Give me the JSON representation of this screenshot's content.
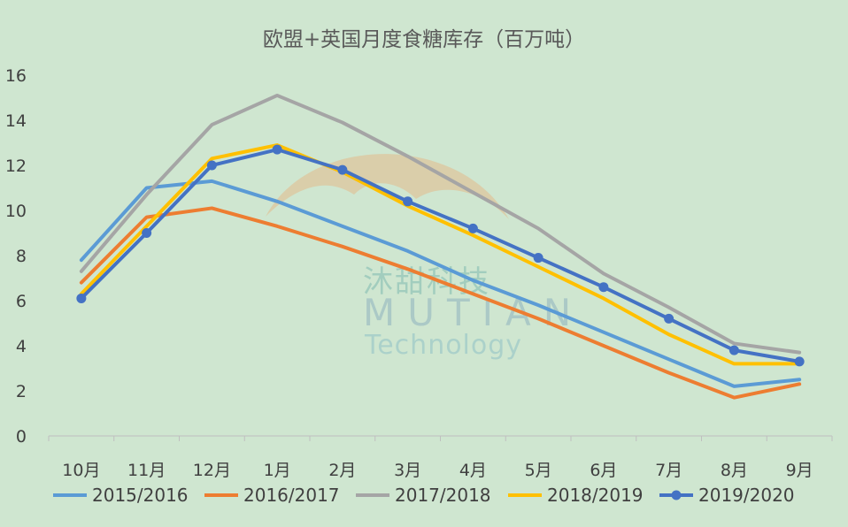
{
  "watermark": {
    "brand_cn": "沐甜科技",
    "brand_en": "MUTIAN",
    "tagline": "Technology"
  },
  "colors": {
    "background": "#cfe6d0",
    "watermark_logo": "#e3b98a",
    "axis": "#bfbfbf"
  },
  "chart_data": {
    "type": "line",
    "title": "欧盟+英国月度食糖库存（百万吨）",
    "xlabel": "",
    "ylabel": "",
    "categories": [
      "10月",
      "11月",
      "12月",
      "1月",
      "2月",
      "3月",
      "4月",
      "5月",
      "6月",
      "7月",
      "8月",
      "9月"
    ],
    "ylim": [
      0,
      16
    ],
    "yticks": [
      0,
      2,
      4,
      6,
      8,
      10,
      12,
      14,
      16
    ],
    "grid": false,
    "legend_position": "bottom",
    "series": [
      {
        "name": "2015/2016",
        "color": "#5b9bd5",
        "markers": false,
        "values": [
          7.8,
          11.0,
          11.3,
          10.4,
          9.3,
          8.2,
          6.9,
          5.8,
          4.6,
          3.4,
          2.2,
          2.5
        ]
      },
      {
        "name": "2016/2017",
        "color": "#ed7d31",
        "markers": false,
        "values": [
          6.8,
          9.7,
          10.1,
          9.3,
          8.4,
          7.4,
          6.3,
          5.2,
          4.0,
          2.8,
          1.7,
          2.3
        ]
      },
      {
        "name": "2017/2018",
        "color": "#a5a5a5",
        "markers": false,
        "values": [
          7.3,
          10.7,
          13.8,
          15.1,
          13.9,
          12.4,
          10.8,
          9.2,
          7.2,
          5.7,
          4.1,
          3.7
        ]
      },
      {
        "name": "2018/2019",
        "color": "#ffc000",
        "markers": false,
        "values": [
          6.3,
          9.3,
          12.3,
          12.9,
          11.7,
          10.2,
          8.9,
          7.5,
          6.1,
          4.5,
          3.2,
          3.2
        ]
      },
      {
        "name": "2019/2020",
        "color": "#4472c4",
        "markers": true,
        "values": [
          6.1,
          9.0,
          12.0,
          12.7,
          11.8,
          10.4,
          9.2,
          7.9,
          6.6,
          5.2,
          3.8,
          3.3
        ]
      }
    ]
  }
}
